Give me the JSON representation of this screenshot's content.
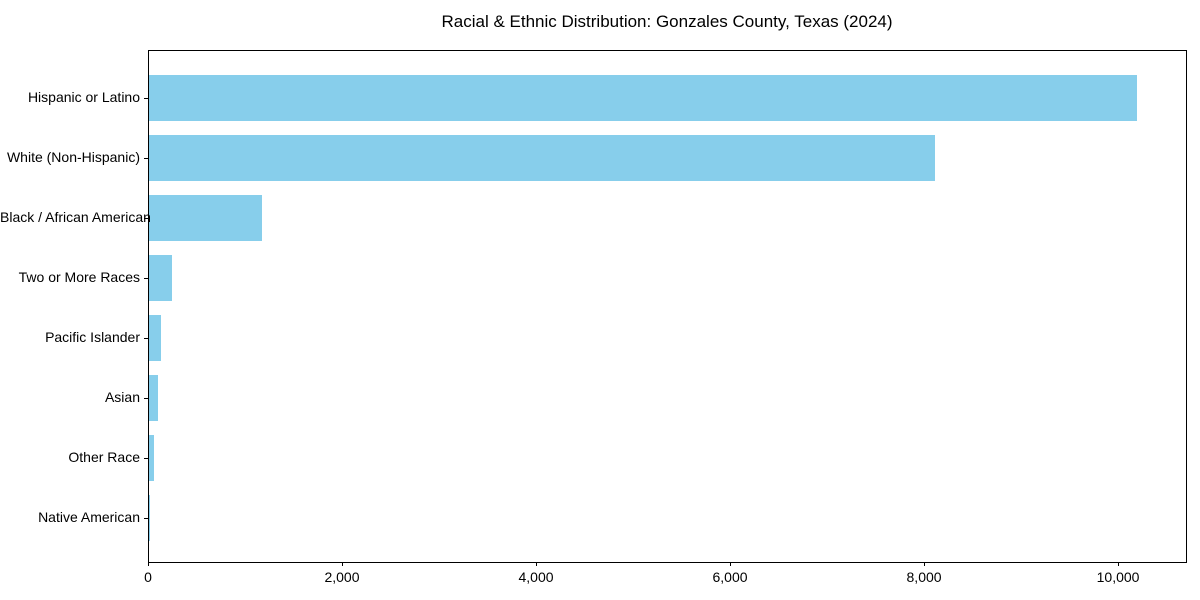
{
  "chart_data": {
    "type": "bar",
    "orientation": "horizontal",
    "title": "Racial & Ethnic Distribution: Gonzales County, Texas (2024)",
    "categories": [
      "Hispanic or Latino",
      "White (Non-Hispanic)",
      "Black / African American",
      "Two or More Races",
      "Pacific Islander",
      "Asian",
      "Other Race",
      "Native American"
    ],
    "values": [
      10180,
      8100,
      1160,
      240,
      120,
      90,
      50,
      10
    ],
    "xlabel": "",
    "ylabel": "",
    "xlim": [
      0,
      10690
    ],
    "xticks": [
      {
        "value": 0,
        "label": "0"
      },
      {
        "value": 2000,
        "label": "2,000"
      },
      {
        "value": 4000,
        "label": "4,000"
      },
      {
        "value": 6000,
        "label": "6,000"
      },
      {
        "value": 8000,
        "label": "8,000"
      },
      {
        "value": 10000,
        "label": "10,000"
      }
    ],
    "bar_color": "#87CEEB",
    "frame_color": "#000000",
    "text_color": "#000000",
    "background_color": "#ffffff",
    "grid": false,
    "legend": "none"
  }
}
